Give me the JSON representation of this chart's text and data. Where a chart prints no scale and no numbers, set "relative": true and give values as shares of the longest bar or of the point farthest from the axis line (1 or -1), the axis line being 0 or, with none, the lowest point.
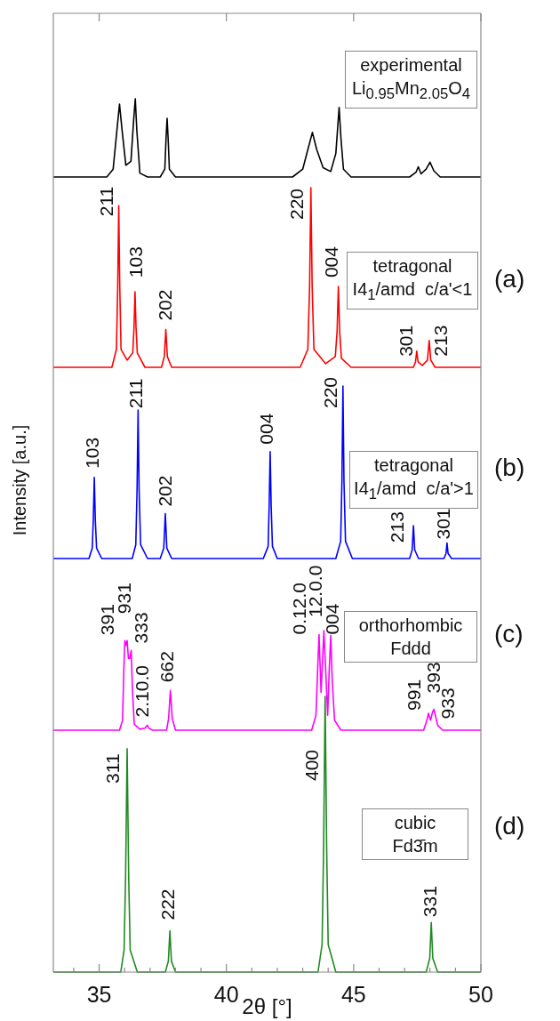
{
  "chart_data": [
    {
      "type": "line",
      "title": "experimental\nLi$_{0.95}$Mn$_{2.05}$O$_{4}$",
      "relative": true,
      "color": "#000000",
      "xlim": [
        33.2,
        50
      ],
      "xticks": [
        35,
        40,
        45,
        50
      ],
      "tick_labels": false,
      "x": [
        33.2,
        35.3,
        35.55,
        35.7,
        35.8,
        35.9,
        36.05,
        36.25,
        36.35,
        36.42,
        36.48,
        36.6,
        36.9,
        37.4,
        37.58,
        37.63,
        37.67,
        37.71,
        37.76,
        38.0,
        42.6,
        43.0,
        43.2,
        43.38,
        43.55,
        43.8,
        44.1,
        44.3,
        44.43,
        44.5,
        44.6,
        44.9,
        47.2,
        47.45,
        47.54,
        47.65,
        47.85,
        48.0,
        48.15,
        48.4,
        50
      ],
      "values": [
        0,
        0,
        0.1,
        0.6,
        0.93,
        0.6,
        0.15,
        0.2,
        0.7,
        1,
        0.6,
        0.05,
        0,
        0,
        0.1,
        0.5,
        0.75,
        0.5,
        0.1,
        0,
        0,
        0.1,
        0.35,
        0.57,
        0.35,
        0.12,
        0.07,
        0.3,
        0.89,
        0.5,
        0.1,
        0,
        0,
        0.06,
        0.13,
        0.04,
        0.1,
        0.19,
        0.08,
        0,
        0
      ]
    },
    {
      "type": "line",
      "title": "tetragonal\nI4$_{1}$/amd  c/a'<1",
      "relative": true,
      "color": "#ff0000",
      "xlim": [
        33.2,
        50
      ],
      "tick_labels": false,
      "x": [
        33.2,
        35.5,
        35.68,
        35.73,
        35.77,
        35.81,
        35.86,
        36.1,
        36.32,
        36.37,
        36.41,
        36.45,
        36.5,
        36.8,
        37.45,
        37.56,
        37.62,
        37.68,
        37.85,
        42.9,
        43.2,
        43.27,
        43.32,
        43.37,
        43.44,
        43.9,
        44.28,
        44.35,
        44.4,
        44.45,
        44.52,
        44.9,
        47.35,
        47.43,
        47.48,
        47.53,
        47.7,
        47.9,
        47.97,
        48.03,
        48.2,
        50
      ],
      "values": [
        0,
        0,
        0.1,
        0.45,
        0.9,
        0.45,
        0.1,
        0.04,
        0.08,
        0.22,
        0.42,
        0.22,
        0.08,
        0,
        0,
        0.06,
        0.21,
        0.06,
        0,
        0,
        0.1,
        0.45,
        1,
        0.45,
        0.1,
        0.02,
        0.06,
        0.2,
        0.45,
        0.2,
        0.05,
        0,
        0,
        0.03,
        0.09,
        0.03,
        0.01,
        0.04,
        0.15,
        0.04,
        0,
        0
      ],
      "annotations": [
        "(a)",
        {
          "text": "211",
          "x": 35.77,
          "y": 0.9
        },
        {
          "text": "103",
          "x": 36.41,
          "y": 0.42
        },
        {
          "text": "202",
          "x": 37.62,
          "y": 0.21
        },
        {
          "text": "220",
          "x": 43.32,
          "y": 1
        },
        {
          "text": "004",
          "x": 44.4,
          "y": 0.45
        },
        {
          "text": "301",
          "x": 47.48,
          "y": 0.09
        },
        {
          "text": "213",
          "x": 47.97,
          "y": 0.15
        }
      ]
    },
    {
      "type": "line",
      "title": "tetragonal\nI4$_{1}$/amd  c/a'>1",
      "ylabel": "Intensity [a.u.]",
      "relative": true,
      "color": "#0000ff",
      "xlim": [
        33.2,
        50
      ],
      "tick_labels": false,
      "x": [
        33.2,
        34.6,
        34.73,
        34.77,
        34.81,
        34.85,
        34.9,
        35.1,
        36.3,
        36.44,
        36.49,
        36.53,
        36.57,
        36.63,
        36.9,
        37.4,
        37.54,
        37.6,
        37.66,
        37.85,
        41.45,
        41.64,
        41.68,
        41.72,
        41.76,
        41.81,
        42.0,
        44.3,
        44.49,
        44.54,
        44.58,
        44.62,
        44.68,
        44.95,
        47.2,
        47.3,
        47.35,
        47.4,
        47.55,
        48.55,
        48.63,
        48.67,
        48.71,
        48.85,
        50
      ],
      "values": [
        0,
        0,
        0.06,
        0.22,
        0.47,
        0.22,
        0.06,
        0,
        0,
        0.08,
        0.4,
        0.86,
        0.4,
        0.08,
        0,
        0,
        0.06,
        0.26,
        0.06,
        0,
        0,
        0.07,
        0.3,
        0.62,
        0.3,
        0.07,
        0,
        0,
        0.1,
        0.45,
        1,
        0.45,
        0.1,
        0,
        0,
        0.05,
        0.19,
        0.05,
        0,
        0,
        0.03,
        0.09,
        0.03,
        0,
        0
      ],
      "annotations": [
        "(b)",
        {
          "text": "103",
          "x": 34.81,
          "y": 0.47
        },
        {
          "text": "211",
          "x": 36.53,
          "y": 0.86
        },
        {
          "text": "202",
          "x": 37.6,
          "y": 0.26
        },
        {
          "text": "004",
          "x": 41.72,
          "y": 0.62
        },
        {
          "text": "220",
          "x": 44.58,
          "y": 1
        },
        {
          "text": "213",
          "x": 47.35,
          "y": 0.19
        },
        {
          "text": "301",
          "x": 48.67,
          "y": 0.09
        }
      ]
    },
    {
      "type": "line",
      "title": "orthorhombic\nFddd",
      "relative": true,
      "color": "#ff00ff",
      "xlim": [
        33.2,
        50
      ],
      "tick_labels": false,
      "x": [
        33.2,
        35.8,
        35.92,
        35.97,
        36.01,
        36.05,
        36.1,
        36.15,
        36.2,
        36.26,
        36.31,
        36.38,
        36.6,
        36.8,
        36.89,
        36.95,
        37.1,
        37.65,
        37.73,
        37.8,
        37.87,
        38.0,
        43.35,
        43.52,
        43.6,
        43.64,
        43.72,
        43.78,
        43.83,
        43.92,
        43.98,
        44.04,
        44.1,
        44.16,
        44.25,
        44.5,
        47.75,
        47.88,
        47.94,
        48.02,
        48.1,
        48.15,
        48.22,
        48.3,
        48.5,
        50
      ],
      "values": [
        0,
        0,
        0.1,
        0.6,
        0.9,
        0.85,
        0.9,
        0.72,
        0.72,
        0.8,
        0.4,
        0.06,
        0.01,
        0.02,
        0.05,
        0.02,
        0,
        0,
        0.12,
        0.4,
        0.12,
        0,
        0,
        0.15,
        0.7,
        0.96,
        0.38,
        0.7,
        1,
        0.5,
        0.15,
        0.6,
        0.95,
        0.5,
        0.1,
        0,
        0,
        0.1,
        0.17,
        0.1,
        0.18,
        0.21,
        0.14,
        0.05,
        0,
        0
      ],
      "annotations": [
        "(c)",
        {
          "text": "391",
          "x": 36.01,
          "y": 0.9
        },
        {
          "text": "931",
          "x": 36.1,
          "y": 0.9
        },
        {
          "text": "333",
          "x": 36.26,
          "y": 0.8
        },
        {
          "text": "2.10.0",
          "x": 36.89,
          "y": 0.05
        },
        {
          "text": "662",
          "x": 37.8,
          "y": 0.4
        },
        {
          "text": "0.12.0",
          "x": 43.64,
          "y": 0.96
        },
        {
          "text": "12.0.0",
          "x": 43.83,
          "y": 1
        },
        {
          "text": "004",
          "x": 44.1,
          "y": 0.95
        },
        {
          "text": "991",
          "x": 47.94,
          "y": 0.17
        },
        {
          "text": "393",
          "x": 48.15,
          "y": 0.21
        },
        {
          "text": "933",
          "x": 48.3,
          "y": 0.05
        }
      ]
    },
    {
      "type": "line",
      "title": "cubic\nFd3̄m",
      "xlabel": "2θ [°]",
      "relative": true,
      "color": "#208a20",
      "xlim": [
        33.2,
        50
      ],
      "tick_labels": "x",
      "xticks": [
        {
          "value": 34,
          "label": null
        },
        35,
        {
          "value": 36,
          "label": null
        },
        {
          "value": 37,
          "label": null
        },
        {
          "value": 38,
          "label": null
        },
        {
          "value": 39,
          "label": null
        },
        40,
        {
          "value": 41,
          "label": null
        },
        {
          "value": 42,
          "label": null
        },
        {
          "value": 43,
          "label": null
        },
        {
          "value": 44,
          "label": null
        },
        45,
        {
          "value": 46,
          "label": null
        },
        {
          "value": 47,
          "label": null
        },
        {
          "value": 48,
          "label": null
        },
        {
          "value": 49,
          "label": null
        },
        50
      ],
      "x": [
        33.2,
        35.85,
        35.98,
        36.04,
        36.1,
        36.16,
        36.22,
        36.5,
        37.6,
        37.72,
        37.78,
        37.84,
        38.0,
        43.6,
        43.76,
        43.82,
        43.88,
        43.94,
        44.0,
        44.3,
        47.85,
        47.99,
        48.05,
        48.11,
        48.3,
        50
      ],
      "values": [
        0,
        0,
        0.08,
        0.35,
        0.81,
        0.35,
        0.08,
        0,
        0,
        0.04,
        0.15,
        0.04,
        0,
        0,
        0.1,
        0.45,
        1,
        0.45,
        0.1,
        0,
        0,
        0.05,
        0.18,
        0.05,
        0,
        0
      ],
      "annotations": [
        "(d)",
        {
          "text": "311",
          "x": 36.1,
          "y": 0.81
        },
        {
          "text": "222",
          "x": 37.78,
          "y": 0.15
        },
        {
          "text": "400",
          "x": 43.88,
          "y": 1
        },
        {
          "text": "331",
          "x": 48.05,
          "y": 0.18
        }
      ]
    }
  ]
}
